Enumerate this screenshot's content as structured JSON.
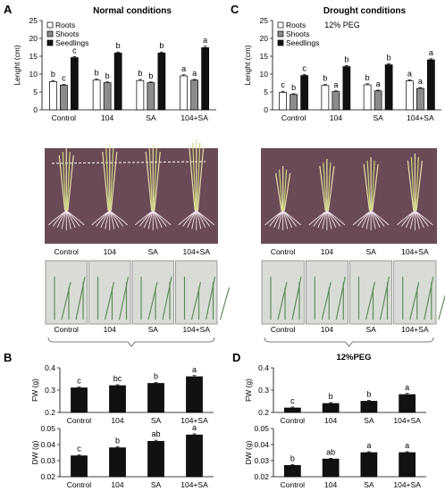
{
  "panels": {
    "A": {
      "letter": "A",
      "title": "Normal conditions",
      "subtitle": ""
    },
    "B": {
      "letter": "B",
      "title": "",
      "subtitle": ""
    },
    "C": {
      "letter": "C",
      "title": "Drought conditions",
      "subtitle": "12% PEG"
    },
    "D": {
      "letter": "D",
      "title": "12%PEG",
      "subtitle": ""
    }
  },
  "photo_labels": [
    "Control",
    "104",
    "SA",
    "104+SA"
  ],
  "colors": {
    "roots": "#ffffff",
    "shoots": "#8c8c8c",
    "seedlings": "#111111",
    "photo_bg": "#6a4a56",
    "cup_bg": "#d9dcd6"
  },
  "chart_data": [
    {
      "id": "A",
      "type": "bar",
      "title": "",
      "categories": [
        "Control",
        "104",
        "SA",
        "104+SA"
      ],
      "ylabel": "Lenght (cm)",
      "ylim": [
        0,
        25
      ],
      "yticks": [
        0,
        5,
        10,
        15,
        20,
        25
      ],
      "legend": "top-left",
      "series": [
        {
          "name": "Roots",
          "key": "roots",
          "values": [
            7.9,
            8.3,
            8.2,
            9.5
          ],
          "errors": [
            0.3,
            0.3,
            0.3,
            0.3
          ],
          "letters": [
            "b",
            "b",
            "b",
            "a"
          ]
        },
        {
          "name": "Shoots",
          "key": "shoots",
          "values": [
            6.9,
            7.6,
            7.6,
            8.3
          ],
          "errors": [
            0.2,
            0.2,
            0.2,
            0.2
          ],
          "letters": [
            "c",
            "b",
            "b",
            "a"
          ]
        },
        {
          "name": "Seedlings",
          "key": "seedlings",
          "values": [
            14.6,
            15.9,
            15.9,
            17.4
          ],
          "errors": [
            0.3,
            0.3,
            0.3,
            0.4
          ],
          "letters": [
            "c",
            "b",
            "b",
            "a"
          ]
        }
      ]
    },
    {
      "id": "C",
      "type": "bar",
      "title": "",
      "categories": [
        "Control",
        "104",
        "SA",
        "104+SA"
      ],
      "ylabel": "Lenght (cm)",
      "ylim": [
        0,
        25
      ],
      "yticks": [
        0,
        5,
        10,
        15,
        20,
        25
      ],
      "legend": "top-left",
      "series": [
        {
          "name": "Roots",
          "key": "roots",
          "values": [
            4.9,
            6.8,
            7.0,
            8.1
          ],
          "errors": [
            0.3,
            0.3,
            0.3,
            0.3
          ],
          "letters": [
            "c",
            "b",
            "b",
            "a"
          ]
        },
        {
          "name": "Shoots",
          "key": "shoots",
          "values": [
            4.3,
            5.1,
            5.3,
            6.0
          ],
          "errors": [
            0.2,
            0.2,
            0.2,
            0.2
          ],
          "letters": [
            "b",
            "a",
            "a",
            "a"
          ]
        },
        {
          "name": "Seedlings",
          "key": "seedlings",
          "values": [
            9.6,
            12.1,
            12.6,
            14.0
          ],
          "errors": [
            0.3,
            0.3,
            0.3,
            0.3
          ],
          "letters": [
            "c",
            "b",
            "b",
            "a"
          ]
        }
      ]
    },
    {
      "id": "B-FW",
      "type": "bar",
      "title": "",
      "categories": [
        "Control",
        "104",
        "SA",
        "104+SA"
      ],
      "ylabel": "FW (g)",
      "ylim": [
        0.2,
        0.4
      ],
      "yticks": [
        0.2,
        0.3,
        0.4
      ],
      "series": [
        {
          "name": "",
          "key": "seedlings",
          "values": [
            0.31,
            0.32,
            0.33,
            0.36
          ],
          "errors": [
            0.004,
            0.004,
            0.004,
            0.005
          ],
          "letters": [
            "c",
            "bc",
            "b",
            "a"
          ]
        }
      ]
    },
    {
      "id": "B-DW",
      "type": "bar",
      "title": "",
      "categories": [
        "Control",
        "104",
        "SA",
        "104+SA"
      ],
      "ylabel": "DW (g)",
      "ylim": [
        0.02,
        0.05
      ],
      "yticks": [
        0.02,
        0.03,
        0.04,
        0.05
      ],
      "series": [
        {
          "name": "",
          "key": "seedlings",
          "values": [
            0.033,
            0.038,
            0.042,
            0.046
          ],
          "errors": [
            0.0006,
            0.0006,
            0.0007,
            0.0007
          ],
          "letters": [
            "c",
            "b",
            "ab",
            "a"
          ]
        }
      ]
    },
    {
      "id": "D-FW",
      "type": "bar",
      "title": "",
      "categories": [
        "Control",
        "104",
        "SA",
        "104+SA"
      ],
      "ylabel": "FW (g)",
      "ylim": [
        0.2,
        0.4
      ],
      "yticks": [
        0.2,
        0.3,
        0.4
      ],
      "series": [
        {
          "name": "",
          "key": "seedlings",
          "values": [
            0.22,
            0.24,
            0.25,
            0.28
          ],
          "errors": [
            0.004,
            0.004,
            0.004,
            0.005
          ],
          "letters": [
            "c",
            "b",
            "b",
            "a"
          ]
        }
      ]
    },
    {
      "id": "D-DW",
      "type": "bar",
      "title": "",
      "categories": [
        "Control",
        "104",
        "SA",
        "104+SA"
      ],
      "ylabel": "DW (g)",
      "ylim": [
        0.02,
        0.05
      ],
      "yticks": [
        0.02,
        0.03,
        0.04,
        0.05
      ],
      "series": [
        {
          "name": "",
          "key": "seedlings",
          "values": [
            0.027,
            0.031,
            0.035,
            0.035
          ],
          "errors": [
            0.0005,
            0.0005,
            0.0006,
            0.0006
          ],
          "letters": [
            "b",
            "ab",
            "a",
            "a"
          ]
        }
      ]
    }
  ]
}
